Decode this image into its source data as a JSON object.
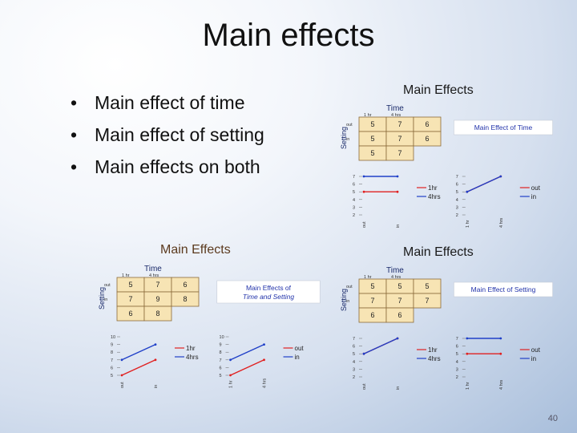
{
  "slide": {
    "title": "Main effects",
    "bullets": [
      "Main effect of time",
      "Main effect of setting",
      "Main effects on both"
    ],
    "page_number": "40"
  },
  "panels": {
    "top_right": {
      "title": "Main Effects",
      "table": {
        "time_label": "Time",
        "setting_label": "Setting",
        "col_headers": [
          "1 hr",
          "4 hrs"
        ],
        "row_headers": [
          "out",
          "in"
        ],
        "cells": [
          [
            "5",
            "7",
            "6"
          ],
          [
            "5",
            "7",
            "6"
          ],
          [
            "5",
            "7",
            ""
          ]
        ]
      },
      "caption": [
        "Main Effect of Time"
      ],
      "chart_left": {
        "type": "line",
        "yticks": [
          "7",
          "6",
          "5",
          "4",
          "3",
          "2"
        ],
        "xticks": [
          "out",
          "in"
        ],
        "series": [
          {
            "name": "1hr",
            "values": [
              5,
              5
            ]
          },
          {
            "name": "4hrs",
            "values": [
              7,
              7
            ]
          }
        ]
      },
      "chart_right": {
        "type": "line",
        "yticks": [
          "7",
          "6",
          "5",
          "4",
          "3",
          "2"
        ],
        "xticks": [
          "1 hr",
          "4 hrs"
        ],
        "series": [
          {
            "name": "out",
            "values": [
              5,
              7
            ]
          },
          {
            "name": "in",
            "values": [
              5,
              7
            ]
          }
        ]
      }
    },
    "bottom_left": {
      "title": "Main Effects",
      "table": {
        "time_label": "Time",
        "setting_label": "Setting",
        "col_headers": [
          "1 hr",
          "4 hrs"
        ],
        "row_headers": [
          "out",
          "in"
        ],
        "cells": [
          [
            "5",
            "7",
            "6"
          ],
          [
            "7",
            "9",
            "8"
          ],
          [
            "6",
            "8",
            ""
          ]
        ]
      },
      "caption": [
        "Main Effects of",
        "Time and Setting"
      ],
      "chart_left": {
        "type": "line",
        "yticks": [
          "10",
          "9",
          "8",
          "7",
          "6",
          "5"
        ],
        "xticks": [
          "out",
          "in"
        ],
        "series": [
          {
            "name": "1hr",
            "values": [
              5,
              7
            ]
          },
          {
            "name": "4hrs",
            "values": [
              7,
              9
            ]
          }
        ]
      },
      "chart_right": {
        "type": "line",
        "yticks": [
          "10",
          "9",
          "8",
          "7",
          "6",
          "5"
        ],
        "xticks": [
          "1 hr",
          "4 hrs"
        ],
        "series": [
          {
            "name": "out",
            "values": [
              5,
              7
            ]
          },
          {
            "name": "in",
            "values": [
              7,
              9
            ]
          }
        ]
      }
    },
    "bottom_right": {
      "title": "Main Effects",
      "table": {
        "time_label": "Time",
        "setting_label": "Setting",
        "col_headers": [
          "1 hr",
          "4 hrs"
        ],
        "row_headers": [
          "out",
          "in"
        ],
        "cells": [
          [
            "5",
            "5",
            "5"
          ],
          [
            "7",
            "7",
            "7"
          ],
          [
            "6",
            "6",
            ""
          ]
        ]
      },
      "caption": [
        "Main Effect of Setting"
      ],
      "chart_left": {
        "type": "line",
        "yticks": [
          "7",
          "6",
          "5",
          "4",
          "3",
          "2"
        ],
        "xticks": [
          "out",
          "in"
        ],
        "series": [
          {
            "name": "1hr",
            "values": [
              5,
              7
            ]
          },
          {
            "name": "4hrs",
            "values": [
              5,
              7
            ]
          }
        ]
      },
      "chart_right": {
        "type": "line",
        "yticks": [
          "7",
          "6",
          "5",
          "4",
          "3",
          "2"
        ],
        "xticks": [
          "1 hr",
          "4 hrs"
        ],
        "series": [
          {
            "name": "out",
            "values": [
              5,
              5
            ]
          },
          {
            "name": "in",
            "values": [
              7,
              7
            ]
          }
        ]
      }
    }
  },
  "colors": {
    "series_red": "#e02020",
    "series_blue": "#2040c8",
    "cell_fill": "#f7e4b4",
    "cell_border": "#8a6a3a",
    "accent_text": "#2233aa"
  }
}
